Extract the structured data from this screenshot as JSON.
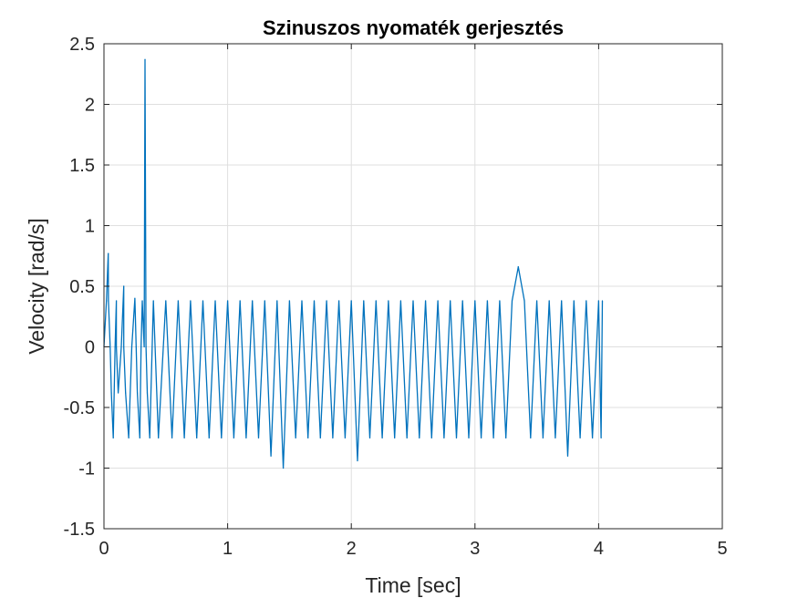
{
  "chart_data": {
    "type": "line",
    "title": "Szinuszos nyomaték gerjesztés",
    "xlabel": "Time [sec]",
    "ylabel": "Velocity [rad/s]",
    "xlim": [
      0,
      5
    ],
    "ylim": [
      -1.5,
      2.5
    ],
    "xticks": [
      0,
      1,
      2,
      3,
      4,
      5
    ],
    "xtick_labels": [
      "0",
      "1",
      "2",
      "3",
      "4",
      "5"
    ],
    "yticks": [
      -1.5,
      -1,
      -0.5,
      0,
      0.5,
      1,
      1.5,
      2,
      2.5
    ],
    "ytick_labels": [
      "-1.5",
      "-1",
      "-0.5",
      "0",
      "0.5",
      "1",
      "1.5",
      "2",
      "2.5"
    ],
    "grid": true,
    "series": [
      {
        "color": "#0072BD",
        "x": [
          0,
          0.02,
          0.035,
          0.036,
          0.05,
          0.06,
          0.075,
          0.09,
          0.1,
          0.1,
          0.115,
          0.14,
          0.16,
          0.16,
          0.175,
          0.2,
          0.225,
          0.25,
          0.26,
          0.27,
          0.29,
          0.3,
          0.31,
          0.325,
          0.332,
          0.34,
          0.35,
          0.37,
          0.4,
          0.44,
          0.5,
          0.55,
          0.6,
          0.65,
          0.7,
          0.75,
          0.8,
          0.85,
          0.9,
          0.95,
          1.0,
          1.05,
          1.1,
          1.15,
          1.2,
          1.25,
          1.3,
          1.35,
          1.4,
          1.45,
          1.5,
          1.55,
          1.6,
          1.65,
          1.7,
          1.75,
          1.8,
          1.85,
          1.9,
          1.95,
          2.0,
          2.05,
          2.1,
          2.15,
          2.2,
          2.25,
          2.3,
          2.35,
          2.4,
          2.45,
          2.5,
          2.55,
          2.6,
          2.65,
          2.7,
          2.75,
          2.8,
          2.85,
          2.9,
          2.95,
          3.0,
          3.05,
          3.1,
          3.15,
          3.2,
          3.25,
          3.3,
          3.35,
          3.4,
          3.45,
          3.5,
          3.55,
          3.6,
          3.65,
          3.7,
          3.75,
          3.8,
          3.85,
          3.9,
          3.95,
          4.0,
          4.02,
          4.03
        ],
        "y": [
          0,
          0.38,
          0.77,
          0.38,
          0,
          -0.38,
          -0.75,
          0,
          0.38,
          0,
          -0.38,
          0,
          0.5,
          0,
          -0.38,
          -0.75,
          0,
          0.4,
          0,
          -0.38,
          -0.75,
          0,
          0.38,
          0,
          2.37,
          0,
          -0.38,
          -0.75,
          0.38,
          -0.75,
          0.38,
          -0.75,
          0.38,
          -0.75,
          0.38,
          -0.75,
          0.38,
          -0.75,
          0.38,
          -0.75,
          0.38,
          -0.75,
          0.38,
          -0.75,
          0.38,
          -0.75,
          0.38,
          -0.9,
          0.38,
          -1.0,
          0.38,
          -0.75,
          0.38,
          -0.75,
          0.38,
          -0.75,
          0.38,
          -0.75,
          0.38,
          -0.75,
          0.38,
          -0.94,
          0.38,
          -0.75,
          0.38,
          -0.75,
          0.38,
          -0.75,
          0.38,
          -0.75,
          0.38,
          -0.75,
          0.38,
          -0.75,
          0.38,
          -0.75,
          0.38,
          -0.75,
          0.38,
          -0.75,
          0.38,
          -0.75,
          0.38,
          -0.75,
          0.38,
          -0.75,
          0.38,
          0.66,
          0.38,
          -0.75,
          0.38,
          -0.75,
          0.38,
          -0.75,
          0.38,
          -0.9,
          0.38,
          -0.75,
          0.38,
          -0.75,
          0.38,
          -0.75,
          0.38
        ]
      }
    ]
  }
}
